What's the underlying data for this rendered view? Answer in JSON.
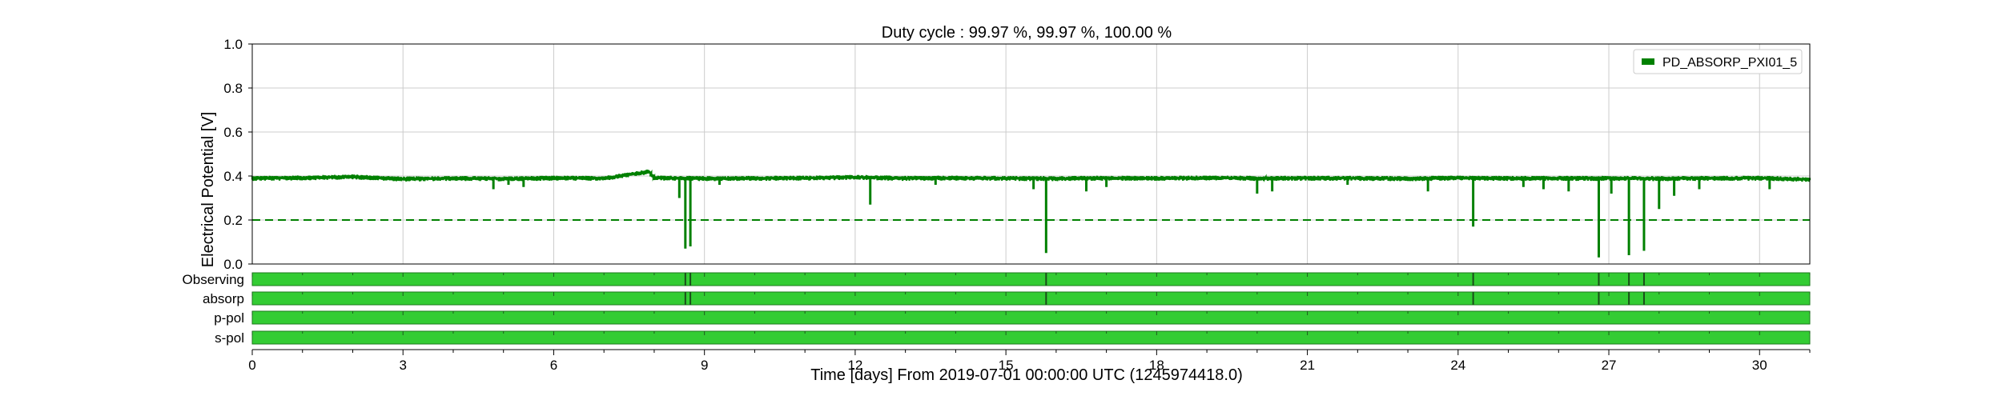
{
  "chart_data": {
    "type": "line",
    "title": "Duty cycle : 99.97 %, 99.97 %, 100.00 %",
    "xlabel": "Time [days] From 2019-07-01 00:00:00 UTC (1245974418.0)",
    "ylabel": "Electrical Potential [V]",
    "xlim": [
      0,
      31
    ],
    "ylim": [
      0,
      1.0
    ],
    "xticks": [
      0,
      3,
      6,
      9,
      12,
      15,
      18,
      21,
      24,
      27,
      30
    ],
    "xtick_labels": [
      "0",
      "3",
      "6",
      "9",
      "12",
      "15",
      "18",
      "21",
      "24",
      "27",
      "30"
    ],
    "yticks": [
      0.0,
      0.2,
      0.4,
      0.6,
      0.8,
      1.0
    ],
    "ytick_labels": [
      "0.0",
      "0.2",
      "0.4",
      "0.6",
      "0.8",
      "1.0"
    ],
    "grid": true,
    "legend_position": "top-right",
    "series": [
      {
        "name": "PD_ABSORP_PXI01_5",
        "color": "#008000",
        "baseline": 0.39,
        "x": [
          0,
          1,
          2,
          3,
          4,
          5,
          6,
          7,
          7.9,
          8,
          9,
          10,
          11,
          12,
          13,
          14,
          15,
          16,
          17,
          18,
          19,
          20,
          21,
          22,
          23,
          24,
          25,
          26,
          27,
          28,
          29,
          30,
          31
        ],
        "values": [
          0.39,
          0.392,
          0.397,
          0.387,
          0.39,
          0.388,
          0.391,
          0.39,
          0.42,
          0.392,
          0.389,
          0.39,
          0.391,
          0.395,
          0.39,
          0.391,
          0.39,
          0.389,
          0.391,
          0.39,
          0.392,
          0.39,
          0.391,
          0.39,
          0.389,
          0.391,
          0.39,
          0.39,
          0.39,
          0.389,
          0.39,
          0.391,
          0.385
        ],
        "dips": [
          {
            "x": 4.8,
            "min": 0.34
          },
          {
            "x": 5.1,
            "min": 0.36
          },
          {
            "x": 5.4,
            "min": 0.35
          },
          {
            "x": 8.5,
            "min": 0.3
          },
          {
            "x": 8.62,
            "min": 0.07
          },
          {
            "x": 8.72,
            "min": 0.08
          },
          {
            "x": 9.3,
            "min": 0.36
          },
          {
            "x": 12.3,
            "min": 0.27
          },
          {
            "x": 13.6,
            "min": 0.36
          },
          {
            "x": 15.55,
            "min": 0.34
          },
          {
            "x": 15.8,
            "min": 0.05
          },
          {
            "x": 16.6,
            "min": 0.33
          },
          {
            "x": 17.0,
            "min": 0.35
          },
          {
            "x": 20.0,
            "min": 0.32
          },
          {
            "x": 20.3,
            "min": 0.33
          },
          {
            "x": 21.8,
            "min": 0.36
          },
          {
            "x": 23.4,
            "min": 0.33
          },
          {
            "x": 24.3,
            "min": 0.17
          },
          {
            "x": 25.3,
            "min": 0.35
          },
          {
            "x": 25.7,
            "min": 0.34
          },
          {
            "x": 26.2,
            "min": 0.33
          },
          {
            "x": 26.8,
            "min": 0.03
          },
          {
            "x": 27.05,
            "min": 0.32
          },
          {
            "x": 27.4,
            "min": 0.04
          },
          {
            "x": 27.7,
            "min": 0.06
          },
          {
            "x": 28.0,
            "min": 0.25
          },
          {
            "x": 28.3,
            "min": 0.31
          },
          {
            "x": 28.8,
            "min": 0.34
          },
          {
            "x": 30.2,
            "min": 0.34
          }
        ]
      }
    ],
    "reference_lines": [
      {
        "y": 0.2,
        "style": "dashed",
        "color": "#008000"
      }
    ],
    "state_bars": [
      {
        "label": "Observing",
        "color": "#33cc33",
        "gaps": [
          8.62,
          8.72,
          15.8,
          24.3,
          26.8,
          27.4,
          27.7
        ]
      },
      {
        "label": "absorp",
        "color": "#33cc33",
        "gaps": [
          8.62,
          8.72,
          15.8,
          24.3,
          26.8,
          27.4,
          27.7
        ]
      },
      {
        "label": "p-pol",
        "color": "#33cc33",
        "gaps": []
      },
      {
        "label": "s-pol",
        "color": "#33cc33",
        "gaps": []
      }
    ]
  }
}
